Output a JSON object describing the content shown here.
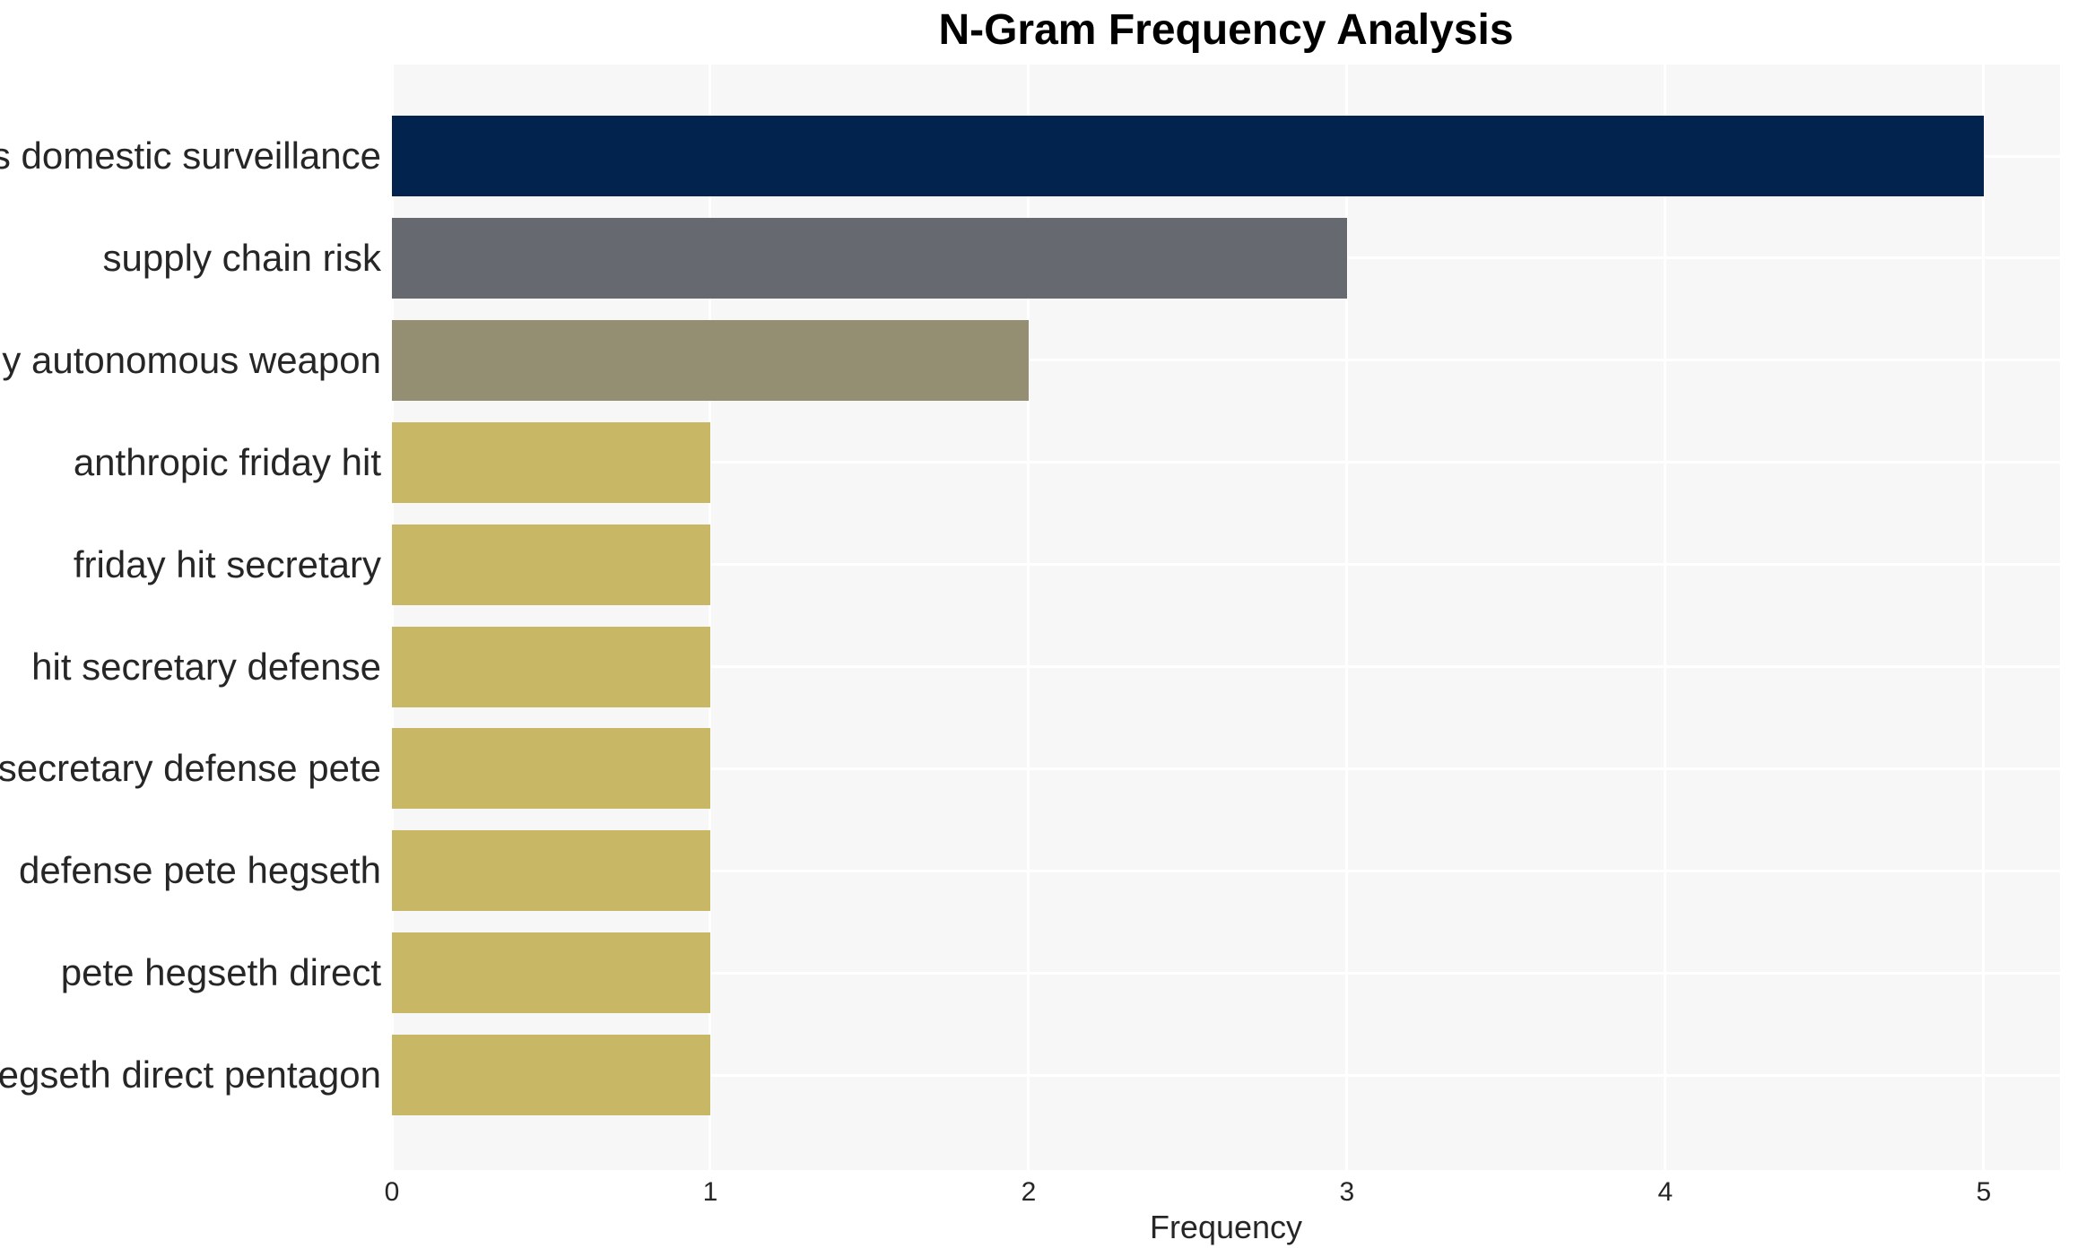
{
  "chart_data": {
    "type": "bar",
    "orientation": "horizontal",
    "title": "N-Gram Frequency Analysis",
    "xlabel": "Frequency",
    "ylabel": "",
    "categories": [
      "mass domestic surveillance",
      "supply chain risk",
      "fully autonomous weapon",
      "anthropic friday hit",
      "friday hit secretary",
      "hit secretary defense",
      "secretary defense pete",
      "defense pete hegseth",
      "pete hegseth direct",
      "hegseth direct pentagon"
    ],
    "values": [
      5,
      3,
      2,
      1,
      1,
      1,
      1,
      1,
      1,
      1
    ],
    "bar_colors": [
      "#02234d",
      "#66696f",
      "#948e73",
      "#c8b765",
      "#c8b765",
      "#c8b765",
      "#c8b765",
      "#c8b765",
      "#c8b765",
      "#c8b765"
    ],
    "xticks": [
      "0",
      "1",
      "2",
      "3",
      "4",
      "5"
    ],
    "xtick_values": [
      0,
      1,
      2,
      3,
      4,
      5
    ],
    "xlim": [
      0,
      5.24
    ],
    "grid": true,
    "legend": false,
    "plot_background": "#f7f7f8",
    "grid_color": "#ffffff",
    "text_color": "#262626",
    "title_color": "#000000"
  }
}
